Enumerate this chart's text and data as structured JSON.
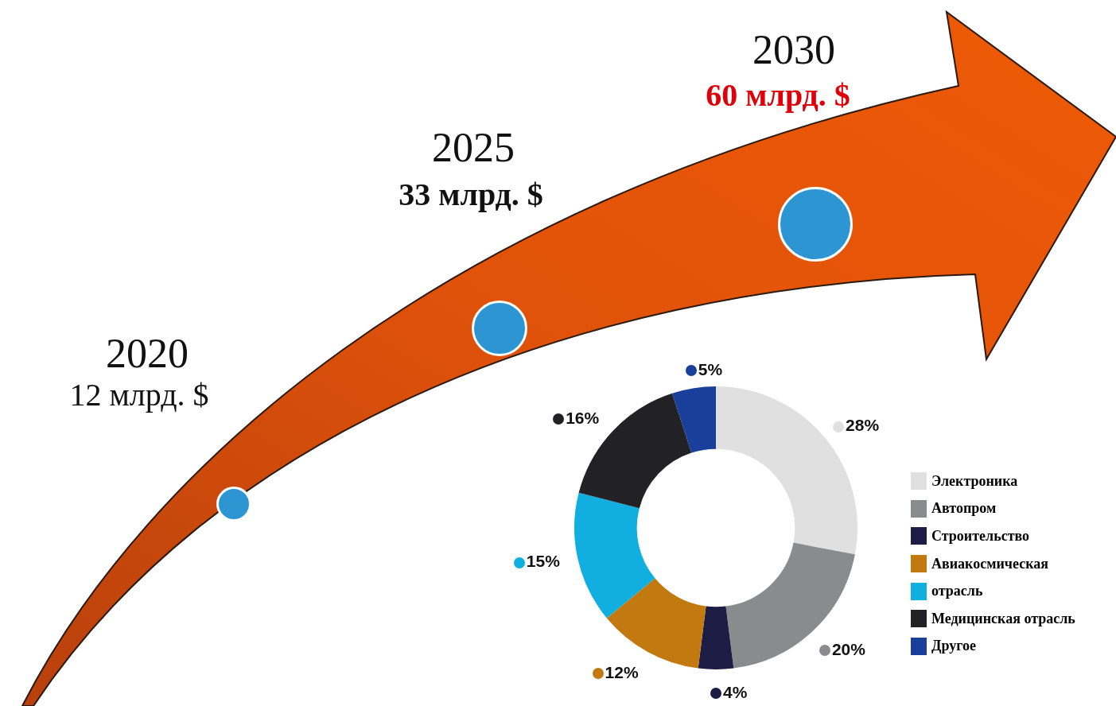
{
  "chart_data": [
    {
      "type": "other",
      "categories": [
        "2020",
        "2025",
        "2030"
      ],
      "values": [
        12,
        33,
        60
      ],
      "value_labels": [
        "12 млрд. $",
        "33 млрд. $",
        "60 млрд. $"
      ],
      "color": "#2e95d3"
    },
    {
      "type": "donut",
      "categories": [
        "Электроника",
        "Автопром",
        "Строительство",
        "Авиакосмическая",
        "отрасль",
        "Медицинская отрасль",
        "Другое"
      ],
      "values": [
        28,
        20,
        4,
        12,
        15,
        16,
        5
      ],
      "value_labels": [
        "28%",
        "20%",
        "4%",
        "12%",
        "15%",
        "16%",
        "5%"
      ],
      "colors": [
        "#e0e0e0",
        "#8a8b8d",
        "#1c1c44",
        "#c27a10",
        "#10afe0",
        "#222226",
        "#1a3f9a"
      ],
      "legend": "right"
    }
  ]
}
